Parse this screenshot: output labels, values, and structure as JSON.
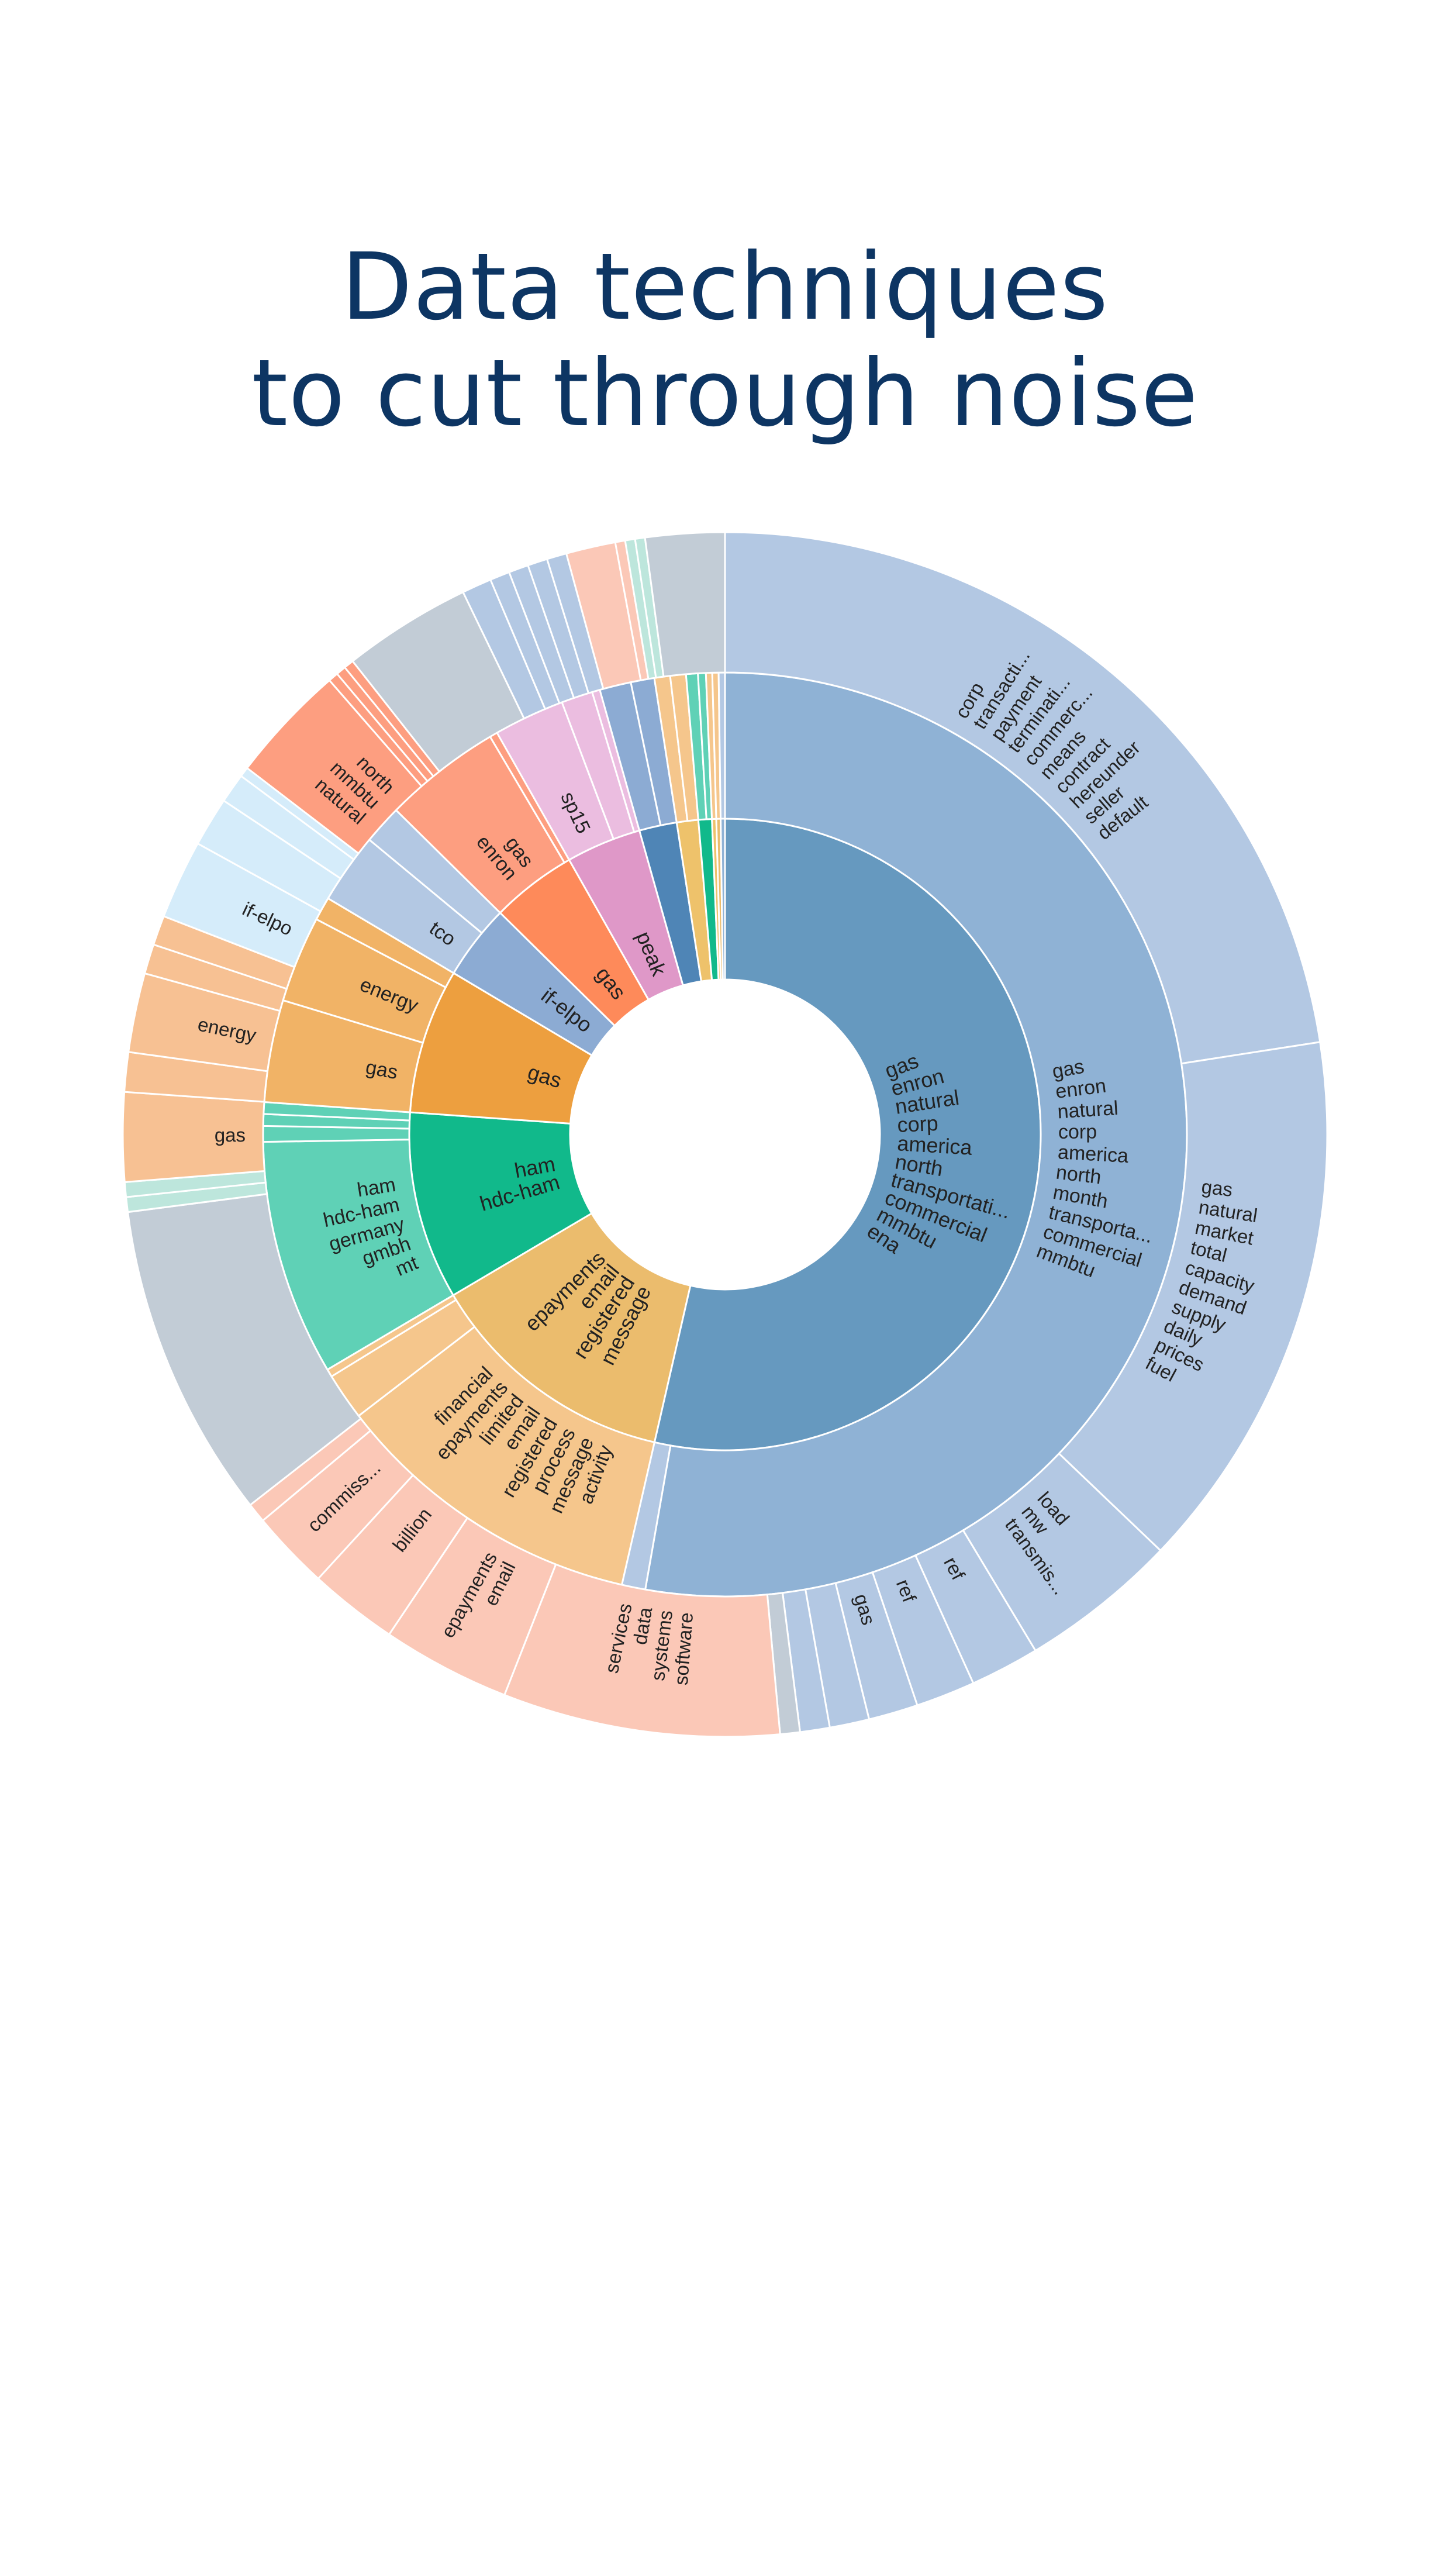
{
  "title": {
    "line1": "Data techniques",
    "line2": "to cut through noise"
  },
  "chart_data": {
    "type": "sunburst",
    "start_angle_deg": 0,
    "colors": {
      "blue_dark": "#6699bf",
      "blue_mid": "#8fb2d5",
      "blue_light": "#b3c8e3",
      "grey": "#c2ccd6",
      "orange": "#ed9f3f",
      "orange_mid": "#f1b366",
      "orange_light": "#f7c193",
      "mustard": "#ebbc6d",
      "mustard_mid": "#f5c68c",
      "salmon_light": "#fbc8b7",
      "green": "#11b98b",
      "green_mid": "#5fd1b6",
      "green_light": "#a8e6d6",
      "coral": "#fe8a5a",
      "coral_mid": "#fd9e80",
      "pink": "#df98c8",
      "pink_light": "#ebbde0",
      "sky_light": "#d5ecfa",
      "teal_light": "#bde6dc",
      "steel": "#4f85b6",
      "steel_mid": "#8cabd3",
      "gold": "#eec26b"
    },
    "inner": [
      {
        "id": "ena",
        "value": 195,
        "color": "blue_dark",
        "terms": [
          "gas",
          "enron",
          "natural",
          "corp",
          "america",
          "north",
          "transportati...",
          "commercial",
          "mmbtu",
          "ena"
        ]
      },
      {
        "id": "epay",
        "value": 47,
        "color": "mustard",
        "terms": [
          "epayments",
          "email",
          "registered",
          "message"
        ]
      },
      {
        "id": "ham",
        "value": 35,
        "color": "green",
        "terms": [
          "ham",
          "hdc-ham"
        ]
      },
      {
        "id": "gasorg",
        "value": 27,
        "color": "orange",
        "terms": [
          "gas"
        ]
      },
      {
        "id": "ifelpo",
        "value": 14,
        "color": "steel_mid",
        "terms": [
          "if-elpo"
        ]
      },
      {
        "id": "enrongas",
        "value": 16,
        "color": "coral",
        "terms": [
          "gas"
        ]
      },
      {
        "id": "peak",
        "value": 14,
        "color": "pink",
        "terms": [
          "peak"
        ]
      },
      {
        "id": "steel",
        "value": 7,
        "color": "steel",
        "terms": []
      },
      {
        "id": "gold",
        "value": 4,
        "color": "gold",
        "terms": []
      },
      {
        "id": "g2",
        "value": 2.5,
        "color": "green",
        "terms": []
      },
      {
        "id": "y1",
        "value": 0.8,
        "color": "gold",
        "terms": []
      },
      {
        "id": "y2",
        "value": 0.8,
        "color": "mustard",
        "terms": []
      },
      {
        "id": "b9",
        "value": 0.8,
        "color": "blue_mid",
        "terms": []
      }
    ],
    "middle": [
      {
        "parent": "ena",
        "value": 192,
        "color": "blue_mid",
        "terms": [
          "gas",
          "enron",
          "natural",
          "corp",
          "america",
          "north",
          "month",
          "transporta...",
          "commercial",
          "mmbtu"
        ]
      },
      {
        "parent": "ena",
        "value": 3,
        "color": "blue_light",
        "terms": []
      },
      {
        "parent": "epay",
        "value": 40,
        "color": "mustard_mid",
        "terms": [
          "financial",
          "epayments",
          "limited",
          "email",
          "registered",
          "process",
          "message",
          "activity"
        ]
      },
      {
        "parent": "epay",
        "value": 6,
        "color": "mustard_mid",
        "terms": []
      },
      {
        "parent": "epay",
        "value": 1,
        "color": "mustard_mid",
        "terms": []
      },
      {
        "parent": "ham",
        "value": 30,
        "color": "green_mid",
        "terms": [
          "ham",
          "hdc-ham",
          "germany",
          "gmbh",
          "mt"
        ]
      },
      {
        "parent": "ham",
        "value": 2,
        "color": "green_mid",
        "terms": []
      },
      {
        "parent": "ham",
        "value": 1.5,
        "color": "green_mid",
        "terms": []
      },
      {
        "parent": "ham",
        "value": 1.5,
        "color": "green_mid",
        "terms": []
      },
      {
        "parent": "gasorg",
        "value": 13,
        "color": "orange_mid",
        "terms": [
          "gas"
        ]
      },
      {
        "parent": "gasorg",
        "value": 11,
        "color": "orange_mid",
        "terms": [
          "energy"
        ]
      },
      {
        "parent": "gasorg",
        "value": 3,
        "color": "orange_mid",
        "terms": []
      },
      {
        "parent": "ifelpo",
        "value": 9,
        "color": "blue_light",
        "terms": [
          "tco"
        ]
      },
      {
        "parent": "ifelpo",
        "value": 5,
        "color": "blue_light",
        "terms": []
      },
      {
        "parent": "enrongas",
        "value": 15,
        "color": "coral_mid",
        "terms": [
          "gas",
          "enron"
        ]
      },
      {
        "parent": "enrongas",
        "value": 1,
        "color": "coral_mid",
        "terms": []
      },
      {
        "parent": "peak",
        "value": 9,
        "color": "pink_light",
        "terms": [
          "sp15"
        ]
      },
      {
        "parent": "peak",
        "value": 4,
        "color": "pink_light",
        "terms": []
      },
      {
        "parent": "peak",
        "value": 1,
        "color": "pink_light",
        "terms": []
      },
      {
        "parent": "steel",
        "value": 4,
        "color": "steel_mid",
        "terms": []
      },
      {
        "parent": "steel",
        "value": 3,
        "color": "steel_mid",
        "terms": []
      },
      {
        "parent": "gold",
        "value": 2,
        "color": "mustard_mid",
        "terms": []
      },
      {
        "parent": "gold",
        "value": 2,
        "color": "mustard_mid",
        "terms": []
      },
      {
        "parent": "g2",
        "value": 1.5,
        "color": "green_mid",
        "terms": []
      },
      {
        "parent": "g2",
        "value": 1,
        "color": "green_mid",
        "terms": []
      },
      {
        "parent": "y1",
        "value": 0.8,
        "color": "mustard_mid",
        "terms": []
      },
      {
        "parent": "y2",
        "value": 0.8,
        "color": "mustard_mid",
        "terms": []
      },
      {
        "parent": "b9",
        "value": 0.8,
        "color": "blue_light",
        "terms": []
      }
    ],
    "outer": [
      {
        "value": 85,
        "color": "blue_light",
        "terms": [
          "corp",
          "transacti...",
          "payment",
          "terminati...",
          "commerc...",
          "means",
          "contract",
          "hereunder",
          "seller",
          "default"
        ]
      },
      {
        "value": 55,
        "color": "blue_light",
        "terms": [
          "gas",
          "natural",
          "market",
          "total",
          "capacity",
          "demand",
          "supply",
          "daily",
          "prices",
          "fuel"
        ]
      },
      {
        "value": 16,
        "color": "blue_light",
        "terms": [
          "load",
          "mw",
          "transmis..."
        ]
      },
      {
        "value": 7,
        "color": "blue_light",
        "terms": [
          "ref"
        ]
      },
      {
        "value": 6,
        "color": "blue_light",
        "terms": [
          "ref"
        ]
      },
      {
        "value": 5,
        "color": "blue_light",
        "terms": [
          "gas"
        ]
      },
      {
        "value": 4,
        "color": "blue_light",
        "terms": []
      },
      {
        "value": 3,
        "color": "blue_light",
        "terms": []
      },
      {
        "value": 2,
        "color": "grey",
        "terms": []
      },
      {
        "value": 28,
        "color": "salmon_light",
        "terms": [
          "services",
          "data",
          "systems",
          "software"
        ]
      },
      {
        "value": 13,
        "color": "salmon_light",
        "terms": [
          "epayments",
          "email"
        ]
      },
      {
        "value": 9,
        "color": "salmon_light",
        "terms": [
          "billion"
        ]
      },
      {
        "value": 8,
        "color": "salmon_light",
        "terms": [
          "commiss..."
        ]
      },
      {
        "value": 2,
        "color": "salmon_light",
        "terms": []
      },
      {
        "value": 32,
        "color": "grey",
        "terms": []
      },
      {
        "value": 1.5,
        "color": "teal_light",
        "terms": []
      },
      {
        "value": 1.5,
        "color": "teal_light",
        "terms": []
      },
      {
        "value": 9,
        "color": "orange_light",
        "terms": [
          "gas"
        ]
      },
      {
        "value": 4,
        "color": "orange_light",
        "terms": []
      },
      {
        "value": 8,
        "color": "orange_light",
        "terms": [
          "energy"
        ]
      },
      {
        "value": 3,
        "color": "orange_light",
        "terms": []
      },
      {
        "value": 3,
        "color": "orange_light",
        "terms": []
      },
      {
        "value": 8,
        "color": "sky_light",
        "terms": [
          "if-elpo"
        ]
      },
      {
        "value": 5,
        "color": "sky_light",
        "terms": []
      },
      {
        "value": 3,
        "color": "sky_light",
        "terms": []
      },
      {
        "value": 1,
        "color": "sky_light",
        "terms": []
      },
      {
        "value": 12,
        "color": "coral_mid",
        "terms": [
          "north",
          "mmbtu",
          "natural"
        ]
      },
      {
        "value": 1,
        "color": "coral_mid",
        "terms": []
      },
      {
        "value": 1,
        "color": "coral_mid",
        "terms": []
      },
      {
        "value": 1,
        "color": "coral_mid",
        "terms": []
      },
      {
        "value": 13,
        "color": "grey",
        "terms": []
      },
      {
        "value": 3,
        "color": "blue_light",
        "terms": []
      },
      {
        "value": 2,
        "color": "blue_light",
        "terms": []
      },
      {
        "value": 2,
        "color": "blue_light",
        "terms": []
      },
      {
        "value": 2,
        "color": "blue_light",
        "terms": []
      },
      {
        "value": 2,
        "color": "blue_light",
        "terms": []
      },
      {
        "value": 5,
        "color": "salmon_light",
        "terms": []
      },
      {
        "value": 1,
        "color": "salmon_light",
        "terms": []
      },
      {
        "value": 1,
        "color": "teal_light",
        "terms": []
      },
      {
        "value": 1,
        "color": "teal_light",
        "terms": []
      },
      {
        "value": 8,
        "color": "grey",
        "terms": []
      }
    ]
  }
}
